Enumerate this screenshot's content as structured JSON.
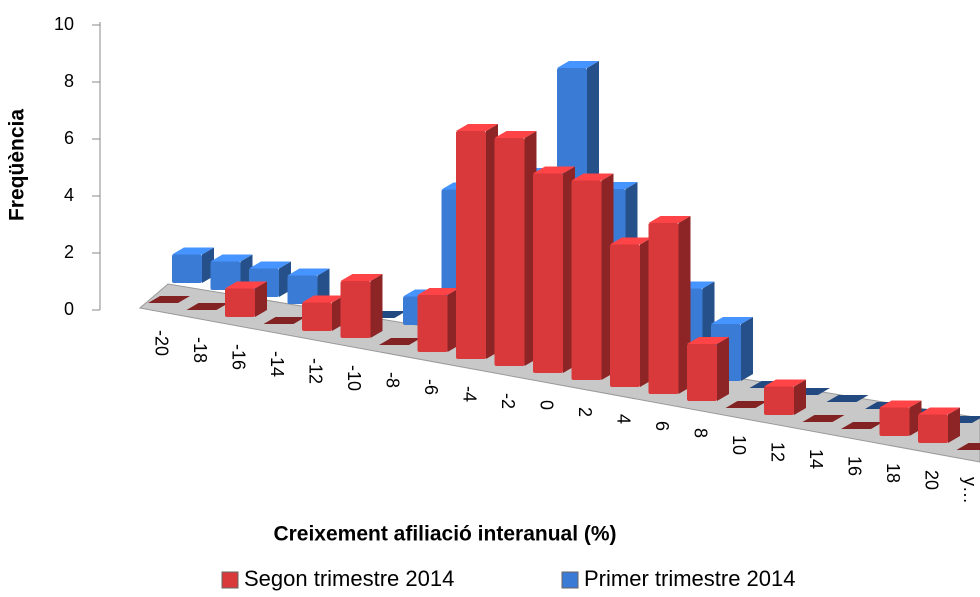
{
  "chart_data": {
    "type": "bar3d",
    "x_label": "Creixement afiliació interanual (%)",
    "y_label": "Freqüència",
    "categories": [
      "-20",
      "-18",
      "-16",
      "-14",
      "-12",
      "-10",
      "-8",
      "-6",
      "-4",
      "-2",
      "0",
      "2",
      "4",
      "6",
      "8",
      "10",
      "12",
      "14",
      "16",
      "18",
      "20",
      "y…"
    ],
    "series": [
      {
        "name": "Segon trimestre 2014",
        "color": "#d9393b",
        "values": [
          0,
          0,
          1,
          0,
          1,
          2,
          0,
          2,
          8,
          8,
          7,
          7,
          5,
          6,
          2,
          0,
          1,
          0,
          0,
          1,
          1,
          0
        ]
      },
      {
        "name": "Primer trimestre 2014",
        "color": "#3a7bd5",
        "values": [
          1,
          1,
          1,
          1,
          0,
          0,
          1,
          5,
          5,
          6,
          10,
          6,
          4,
          3,
          2,
          0,
          0,
          0,
          0,
          0,
          0,
          0
        ]
      }
    ],
    "ylim": [
      0,
      10
    ],
    "yticks": [
      0,
      2,
      4,
      6,
      8,
      10
    ]
  }
}
